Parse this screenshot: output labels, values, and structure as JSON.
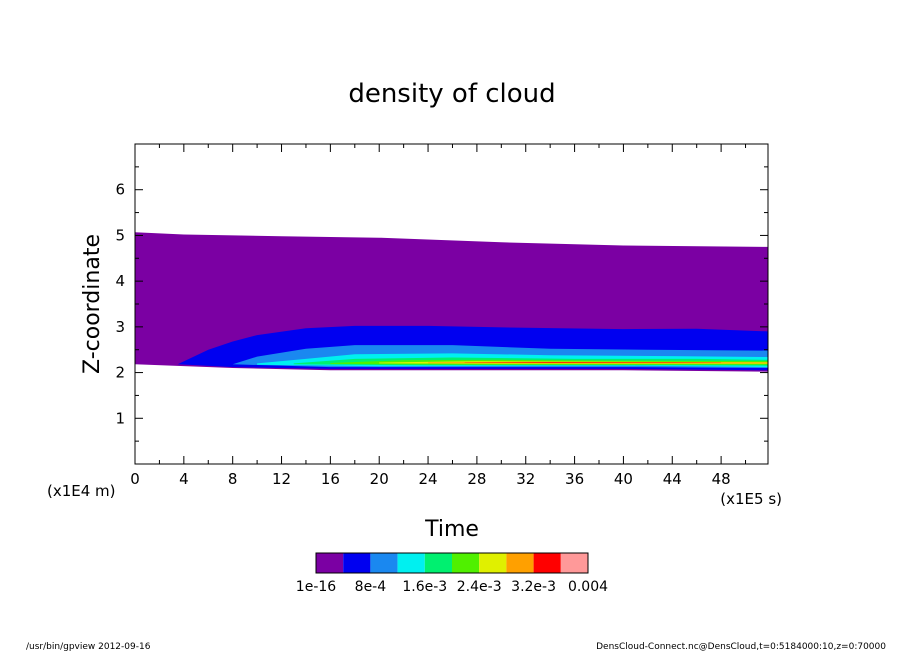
{
  "chart_data": {
    "type": "heatmap",
    "title": "density of cloud",
    "xlabel": "Time",
    "ylabel": "Z-coordinate",
    "x_unit": "(x1E5 s)",
    "y_unit": "(x1E4 m)",
    "xlim": [
      0,
      51.84
    ],
    "ylim": [
      0,
      7
    ],
    "x_ticks": [
      0,
      4,
      8,
      12,
      16,
      20,
      24,
      28,
      32,
      36,
      40,
      44,
      48
    ],
    "y_ticks": [
      1,
      2,
      3,
      4,
      5,
      6
    ],
    "x_tick_labels": [
      "0",
      "4",
      "8",
      "12",
      "16",
      "20",
      "24",
      "28",
      "32",
      "36",
      "40",
      "44",
      "48"
    ],
    "y_tick_labels": [
      "1",
      "2",
      "3",
      "4",
      "5",
      "6"
    ],
    "colorbar": {
      "colors": [
        "#7b00a3",
        "#0000f0",
        "#1a88f0",
        "#00f0f0",
        "#00f070",
        "#50f000",
        "#e0f000",
        "#ffa000",
        "#ff0000",
        "#ff9999"
      ],
      "labels": [
        "1e-16",
        "8e-4",
        "1.6e-3",
        "2.4e-3",
        "3.2e-3",
        "0.004"
      ]
    },
    "bands": [
      {
        "level": 0,
        "bottom": [
          [
            0,
            2.18
          ],
          [
            8,
            2.1
          ],
          [
            16,
            2.05
          ],
          [
            40,
            2.05
          ],
          [
            51.84,
            2.02
          ]
        ],
        "top": [
          [
            0,
            5.07
          ],
          [
            4,
            5.02
          ],
          [
            12,
            4.98
          ],
          [
            20,
            4.95
          ],
          [
            30,
            4.85
          ],
          [
            40,
            4.78
          ],
          [
            51.84,
            4.75
          ]
        ]
      },
      {
        "level": 1,
        "bottom": [
          [
            3.5,
            2.18
          ],
          [
            8,
            2.12
          ],
          [
            16,
            2.08
          ],
          [
            40,
            2.08
          ],
          [
            51.84,
            2.05
          ]
        ],
        "top": [
          [
            3.5,
            2.18
          ],
          [
            6,
            2.5
          ],
          [
            8,
            2.68
          ],
          [
            10,
            2.82
          ],
          [
            14,
            2.97
          ],
          [
            18,
            3.02
          ],
          [
            24,
            3.02
          ],
          [
            32,
            2.98
          ],
          [
            40,
            2.95
          ],
          [
            46,
            2.96
          ],
          [
            51.84,
            2.9
          ]
        ]
      },
      {
        "level": 2,
        "bottom": [
          [
            8,
            2.18
          ],
          [
            16,
            2.12
          ],
          [
            40,
            2.12
          ],
          [
            51.84,
            2.1
          ]
        ],
        "top": [
          [
            8,
            2.18
          ],
          [
            10,
            2.35
          ],
          [
            14,
            2.52
          ],
          [
            18,
            2.6
          ],
          [
            26,
            2.6
          ],
          [
            34,
            2.52
          ],
          [
            42,
            2.5
          ],
          [
            51.84,
            2.48
          ]
        ]
      },
      {
        "level": 3,
        "bottom": [
          [
            10,
            2.17
          ],
          [
            20,
            2.14
          ],
          [
            40,
            2.15
          ],
          [
            51.84,
            2.12
          ]
        ],
        "top": [
          [
            10,
            2.2
          ],
          [
            14,
            2.3
          ],
          [
            18,
            2.4
          ],
          [
            26,
            2.42
          ],
          [
            34,
            2.38
          ],
          [
            44,
            2.36
          ],
          [
            51.84,
            2.34
          ]
        ]
      },
      {
        "level": 4,
        "bottom": [
          [
            13,
            2.18
          ],
          [
            24,
            2.16
          ],
          [
            44,
            2.16
          ],
          [
            51.84,
            2.15
          ]
        ],
        "top": [
          [
            13,
            2.2
          ],
          [
            18,
            2.3
          ],
          [
            26,
            2.33
          ],
          [
            36,
            2.3
          ],
          [
            46,
            2.3
          ],
          [
            51.84,
            2.28
          ]
        ]
      },
      {
        "level": 5,
        "bottom": [
          [
            16,
            2.19
          ],
          [
            28,
            2.17
          ],
          [
            51.84,
            2.17
          ]
        ],
        "top": [
          [
            16,
            2.21
          ],
          [
            22,
            2.27
          ],
          [
            30,
            2.28
          ],
          [
            40,
            2.26
          ],
          [
            51.84,
            2.25
          ]
        ]
      },
      {
        "level": 6,
        "bottom": [
          [
            20,
            2.2
          ],
          [
            30,
            2.19
          ],
          [
            51.84,
            2.19
          ]
        ],
        "top": [
          [
            20,
            2.22
          ],
          [
            28,
            2.25
          ],
          [
            38,
            2.24
          ],
          [
            51.84,
            2.23
          ]
        ]
      },
      {
        "level": 7,
        "bottom": [
          [
            24,
            2.205
          ],
          [
            36,
            2.2
          ],
          [
            51.84,
            2.2
          ]
        ],
        "top": [
          [
            24,
            2.22
          ],
          [
            32,
            2.235
          ],
          [
            44,
            2.23
          ],
          [
            51.84,
            2.22
          ]
        ]
      },
      {
        "level": 8,
        "bottom": [
          [
            27,
            2.21
          ],
          [
            40,
            2.21
          ],
          [
            48,
            2.21
          ]
        ],
        "top": [
          [
            27,
            2.215
          ],
          [
            34,
            2.225
          ],
          [
            44,
            2.22
          ],
          [
            48,
            2.215
          ]
        ]
      }
    ]
  },
  "footer": {
    "left": "/usr/bin/gpview  2012-09-16",
    "right": "DensCloud-Connect.nc@DensCloud,t=0:5184000:10,z=0:70000"
  }
}
